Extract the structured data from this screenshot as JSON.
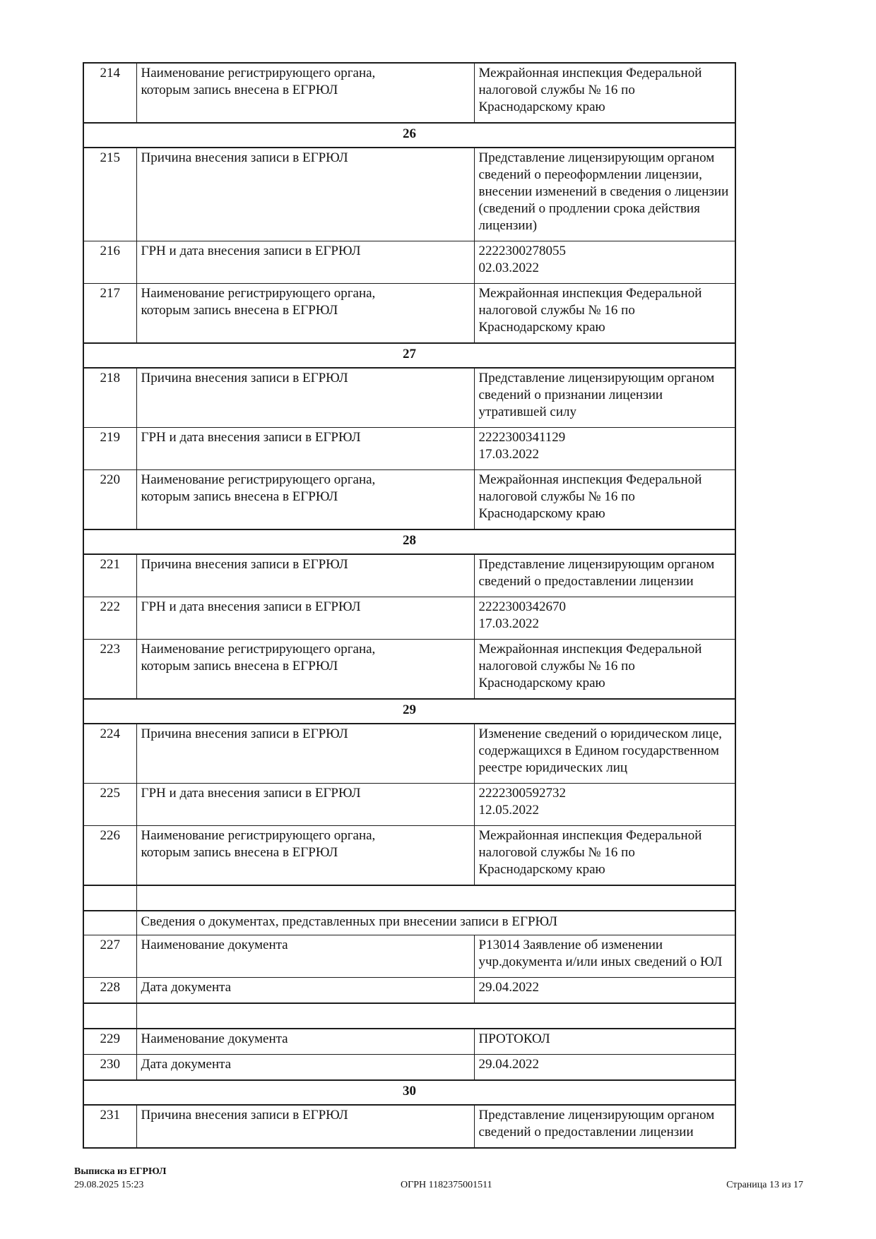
{
  "document": {
    "table": {
      "rows": [
        {
          "type": "data",
          "num": "214",
          "label": "Наименование регистрирующего органа,\nкоторым запись внесена в ЕГРЮЛ",
          "value": "Межрайонная инспекция Федеральной\nналоговой службы № 16 по\nКраснодарскому краю"
        },
        {
          "type": "section",
          "title": "26"
        },
        {
          "type": "data",
          "num": "215",
          "label": "Причина внесения записи в ЕГРЮЛ",
          "value": "Представление лицензирующим органом\nсведений о переоформлении лицензии,\nвнесении изменений в сведения о лицензии\n(сведений о продлении срока действия\nлицензии)"
        },
        {
          "type": "data",
          "num": "216",
          "label": "ГРН и дата внесения записи в ЕГРЮЛ",
          "value": "2222300278055\n02.03.2022"
        },
        {
          "type": "data",
          "num": "217",
          "label": "Наименование регистрирующего органа,\nкоторым запись внесена в ЕГРЮЛ",
          "value": "Межрайонная инспекция Федеральной\nналоговой службы № 16 по\nКраснодарскому краю"
        },
        {
          "type": "section",
          "title": "27"
        },
        {
          "type": "data",
          "num": "218",
          "label": "Причина внесения записи в ЕГРЮЛ",
          "value": "Представление лицензирующим органом\nсведений о признании лицензии\nутратившей силу"
        },
        {
          "type": "data",
          "num": "219",
          "label": "ГРН и дата внесения записи в ЕГРЮЛ",
          "value": "2222300341129\n17.03.2022"
        },
        {
          "type": "data",
          "num": "220",
          "label": "Наименование регистрирующего органа,\nкоторым запись внесена в ЕГРЮЛ",
          "value": "Межрайонная инспекция Федеральной\nналоговой службы № 16 по\nКраснодарскому краю"
        },
        {
          "type": "section",
          "title": "28"
        },
        {
          "type": "data",
          "num": "221",
          "label": "Причина внесения записи в ЕГРЮЛ",
          "value": "Представление лицензирующим органом\nсведений о предоставлении лицензии"
        },
        {
          "type": "data",
          "num": "222",
          "label": "ГРН и дата внесения записи в ЕГРЮЛ",
          "value": "2222300342670\n17.03.2022"
        },
        {
          "type": "data",
          "num": "223",
          "label": "Наименование регистрирующего органа,\nкоторым запись внесена в ЕГРЮЛ",
          "value": "Межрайонная инспекция Федеральной\nналоговой службы № 16 по\nКраснодарскому краю"
        },
        {
          "type": "section",
          "title": "29"
        },
        {
          "type": "data",
          "num": "224",
          "label": "Причина внесения записи в ЕГРЮЛ",
          "value": "Изменение сведений о юридическом лице,\nсодержащихся в Едином государственном\nреестре юридических лиц"
        },
        {
          "type": "data",
          "num": "225",
          "label": "ГРН и дата внесения записи в ЕГРЮЛ",
          "value": "2222300592732\n12.05.2022"
        },
        {
          "type": "data",
          "num": "226",
          "label": "Наименование регистрирующего органа,\nкоторым запись внесена в ЕГРЮЛ",
          "value": "Межрайонная инспекция Федеральной\nналоговой службы № 16 по\nКраснодарскому краю"
        },
        {
          "type": "blank"
        },
        {
          "type": "subheader",
          "text": "Сведения о документах, представленных при внесении записи в ЕГРЮЛ"
        },
        {
          "type": "data",
          "num": "227",
          "label": "Наименование документа",
          "value": "Р13014 Заявление об изменении\nучр.документа и/или иных сведений о ЮЛ"
        },
        {
          "type": "data",
          "num": "228",
          "label": "Дата документа",
          "value": "29.04.2022"
        },
        {
          "type": "blank"
        },
        {
          "type": "data",
          "num": "229",
          "label": "Наименование документа",
          "value": "ПРОТОКОЛ"
        },
        {
          "type": "data",
          "num": "230",
          "label": "Дата документа",
          "value": "29.04.2022"
        },
        {
          "type": "section",
          "title": "30"
        },
        {
          "type": "data",
          "num": "231",
          "label": "Причина внесения записи в ЕГРЮЛ",
          "value": "Представление лицензирующим органом\nсведений о предоставлении лицензии"
        }
      ]
    },
    "footer": {
      "doc_type": "Выписка из ЕГРЮЛ",
      "datetime": "29.08.2025 15:23",
      "ogrn": "ОГРН 1182375001511",
      "page_indicator": "Страница 13 из 17"
    }
  }
}
